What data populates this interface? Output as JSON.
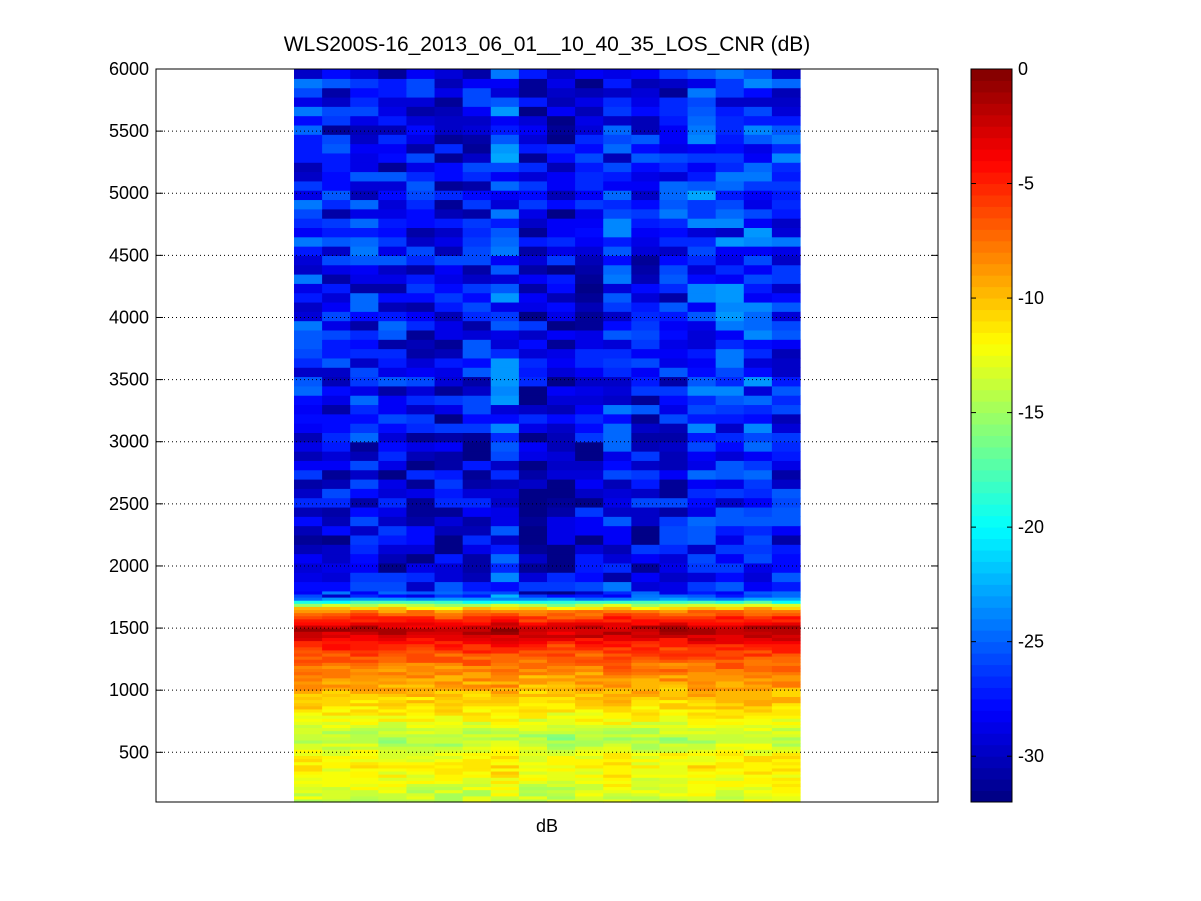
{
  "chart_data": {
    "type": "heatmap",
    "title": "WLS200S-16_2013_06_01__10_40_35_LOS_CNR (dB)",
    "xlabel": "dB",
    "ylabel": "",
    "ylim": [
      100,
      6000
    ],
    "yticks": [
      500,
      1000,
      1500,
      2000,
      2500,
      3000,
      3500,
      4000,
      4500,
      5000,
      5500,
      6000
    ],
    "grid": "horizontal dotted",
    "colormap": "jet",
    "clim": [
      -32,
      0
    ],
    "colorbar_ticks": [
      0,
      -5,
      -10,
      -15,
      -20,
      -25,
      -30
    ],
    "n_columns": 18,
    "profile": [
      {
        "range": 100,
        "cnr": -13.5
      },
      {
        "range": 200,
        "cnr": -13.0
      },
      {
        "range": 300,
        "cnr": -12.0
      },
      {
        "range": 400,
        "cnr": -11.5
      },
      {
        "range": 500,
        "cnr": -12.5
      },
      {
        "range": 600,
        "cnr": -14.5
      },
      {
        "range": 700,
        "cnr": -13.0
      },
      {
        "range": 800,
        "cnr": -11.5
      },
      {
        "range": 900,
        "cnr": -10.5
      },
      {
        "range": 1000,
        "cnr": -9.5
      },
      {
        "range": 1100,
        "cnr": -8.5
      },
      {
        "range": 1200,
        "cnr": -7.5
      },
      {
        "range": 1300,
        "cnr": -6.0
      },
      {
        "range": 1400,
        "cnr": -4.0
      },
      {
        "range": 1450,
        "cnr": -2.0
      },
      {
        "range": 1500,
        "cnr": -1.5
      },
      {
        "range": 1550,
        "cnr": -4.0
      },
      {
        "range": 1600,
        "cnr": -6.0
      },
      {
        "range": 1650,
        "cnr": -8.5
      },
      {
        "range": 1700,
        "cnr": -16.0
      },
      {
        "range": 1750,
        "cnr": -26.0
      },
      {
        "range": 2000,
        "cnr": -28.5
      },
      {
        "range": 2500,
        "cnr": -28.0
      },
      {
        "range": 3000,
        "cnr": -27.5
      },
      {
        "range": 4000,
        "cnr": -27.0
      },
      {
        "range": 5000,
        "cnr": -27.0
      },
      {
        "range": 6000,
        "cnr": -27.5
      }
    ],
    "column_offsets": [
      0.0,
      -1.0,
      -0.5,
      -0.8,
      -1.2,
      -1.5,
      -1.0,
      1.0,
      -2.0,
      -2.5,
      -1.5,
      0.0,
      -1.0,
      -0.5,
      1.0,
      0.5,
      1.0,
      0.2
    ]
  }
}
